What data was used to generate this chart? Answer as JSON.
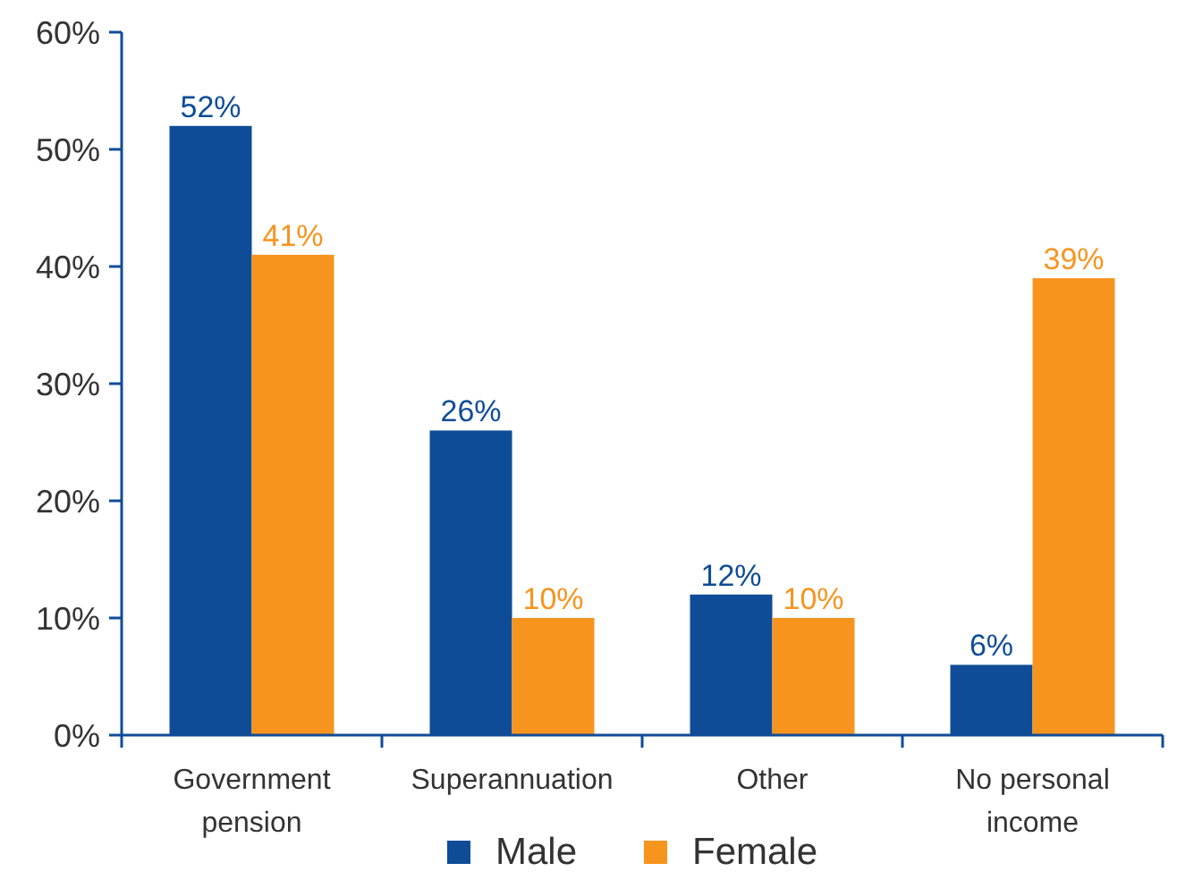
{
  "chart_data": {
    "type": "bar",
    "categories": [
      "Government pension",
      "Superannuation",
      "Other",
      "No personal income"
    ],
    "series": [
      {
        "name": "Male",
        "color": "#0f4c97",
        "values": [
          52,
          26,
          12,
          6
        ],
        "value_labels": [
          "52%",
          "26%",
          "12%",
          "6%"
        ]
      },
      {
        "name": "Female",
        "color": "#f7941e",
        "values": [
          41,
          10,
          10,
          39
        ],
        "value_labels": [
          "41%",
          "10%",
          "10%",
          "39%"
        ]
      }
    ],
    "ylim": [
      0,
      60
    ],
    "yticks": [
      {
        "value": 0,
        "label": "0%"
      },
      {
        "value": 10,
        "label": "10%"
      },
      {
        "value": 20,
        "label": "20%"
      },
      {
        "value": 30,
        "label": "30%"
      },
      {
        "value": 40,
        "label": "40%"
      },
      {
        "value": 50,
        "label": "50%"
      },
      {
        "value": 60,
        "label": "60%"
      }
    ],
    "grid": false,
    "legend": "bottom"
  }
}
